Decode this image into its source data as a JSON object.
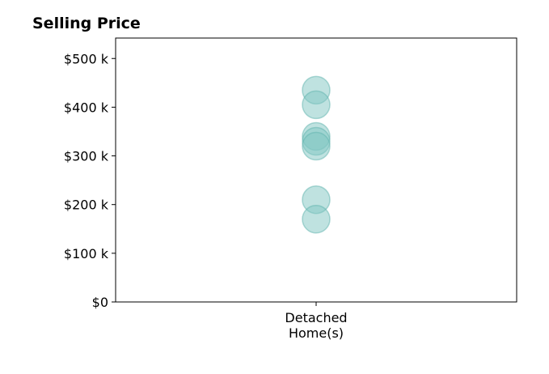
{
  "chart_data": {
    "type": "scatter",
    "title": "Selling Price",
    "categories": [
      "Detached Home(s)"
    ],
    "category_label_lines": [
      [
        "Detached",
        "Home(s)"
      ]
    ],
    "series": [
      {
        "category": "Detached Home(s)",
        "values": [
          435000,
          405000,
          340000,
          330000,
          320000,
          210000,
          170000
        ]
      }
    ],
    "y_ticks": [
      0,
      100000,
      200000,
      300000,
      400000,
      500000
    ],
    "y_tick_labels": [
      "$0",
      "$100 k",
      "$200 k",
      "$300 k",
      "$400 k",
      "$500 k"
    ],
    "ylim": [
      0,
      542000
    ],
    "grid": false,
    "marker_color": "#80c6c1",
    "marker_edge_color": "#5fb3ad"
  }
}
